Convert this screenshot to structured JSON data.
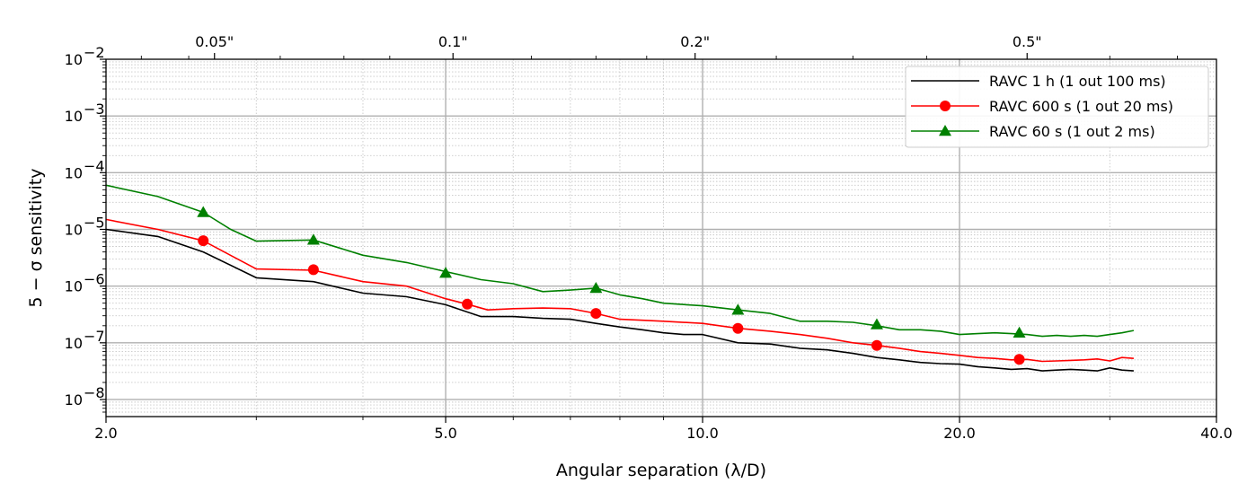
{
  "chart_data": {
    "type": "line",
    "xlabel": "Angular separation (λ/D)",
    "ylabel": "5 − σ sensitivity",
    "x_scale": "log",
    "y_scale": "log",
    "xlim": [
      2.0,
      40.0
    ],
    "ylim": [
      5e-09,
      0.01
    ],
    "grid": true,
    "legend_position": "top-right",
    "x_ticks": [
      {
        "value": 2.0,
        "label": "2.0"
      },
      {
        "value": 5.0,
        "label": "5.0"
      },
      {
        "value": 10.0,
        "label": "10.0"
      },
      {
        "value": 20.0,
        "label": "20.0"
      },
      {
        "value": 40.0,
        "label": "40.0"
      }
    ],
    "x_minor_ticks": [
      3,
      4,
      6,
      7,
      8,
      9,
      30
    ],
    "top_axis_ticks": [
      {
        "value": 2.68,
        "label": "0.05\""
      },
      {
        "value": 5.1,
        "label": "0.1\""
      },
      {
        "value": 9.8,
        "label": "0.2\""
      },
      {
        "value": 24.0,
        "label": "0.5\""
      }
    ],
    "y_ticks": [
      {
        "value": 1e-08,
        "mantissa": "10",
        "exp": "−8"
      },
      {
        "value": 1e-07,
        "mantissa": "10",
        "exp": "−7"
      },
      {
        "value": 1e-06,
        "mantissa": "10",
        "exp": "−6"
      },
      {
        "value": 1e-05,
        "mantissa": "10",
        "exp": "−5"
      },
      {
        "value": 0.0001,
        "mantissa": "10",
        "exp": "−4"
      },
      {
        "value": 0.001,
        "mantissa": "10",
        "exp": "−3"
      },
      {
        "value": 0.01,
        "mantissa": "10",
        "exp": "−2"
      }
    ],
    "series": [
      {
        "name": "RAVC 1 h (1 out 100 ms)",
        "color": "#000000",
        "marker": "none",
        "x": [
          2.0,
          2.3,
          2.6,
          3.0,
          3.5,
          4.0,
          4.5,
          5.0,
          5.5,
          6.0,
          6.5,
          7.0,
          7.5,
          8.0,
          8.5,
          9.0,
          9.5,
          10.0,
          11.0,
          12.0,
          13.0,
          14.0,
          15.0,
          16.0,
          17.0,
          18.0,
          19.0,
          20.0,
          21.0,
          22.0,
          23.0,
          24.0,
          25.0,
          26.0,
          27.0,
          28.0,
          29.0,
          30.0,
          31.0,
          32.0
        ],
        "y": [
          1e-05,
          7.5e-06,
          4e-06,
          1.4e-06,
          1.2e-06,
          7.5e-07,
          6.5e-07,
          4.7e-07,
          2.9e-07,
          2.9e-07,
          2.7e-07,
          2.6e-07,
          2.2e-07,
          1.9e-07,
          1.7e-07,
          1.5e-07,
          1.4e-07,
          1.4e-07,
          1e-07,
          9.5e-08,
          8e-08,
          7.5e-08,
          6.5e-08,
          5.5e-08,
          5e-08,
          4.5e-08,
          4.3e-08,
          4.2e-08,
          3.8e-08,
          3.6e-08,
          3.4e-08,
          3.5e-08,
          3.2e-08,
          3.3e-08,
          3.4e-08,
          3.3e-08,
          3.2e-08,
          3.6e-08,
          3.3e-08,
          3.2e-08
        ]
      },
      {
        "name": "RAVC 600 s (1 out 20 ms)",
        "color": "#ff0000",
        "marker": "circle",
        "x": [
          2.0,
          2.3,
          2.6,
          3.0,
          3.5,
          4.0,
          4.5,
          5.0,
          5.3,
          5.6,
          6.0,
          6.5,
          7.0,
          7.5,
          8.0,
          8.5,
          9.0,
          10.0,
          11.0,
          12.0,
          13.0,
          14.0,
          15.0,
          16.0,
          17.0,
          18.0,
          19.0,
          20.0,
          21.0,
          22.0,
          23.0,
          24.0,
          25.0,
          26.0,
          27.0,
          28.0,
          29.0,
          30.0,
          31.0,
          32.0
        ],
        "y": [
          1.5e-05,
          1e-05,
          6.3e-06,
          2e-06,
          1.9e-06,
          1.2e-06,
          1e-06,
          6e-07,
          4.8e-07,
          3.8e-07,
          4e-07,
          4.1e-07,
          4e-07,
          3.3e-07,
          2.6e-07,
          2.5e-07,
          2.4e-07,
          2.2e-07,
          1.8e-07,
          1.6e-07,
          1.4e-07,
          1.2e-07,
          1e-07,
          9e-08,
          8e-08,
          7e-08,
          6.5e-08,
          6e-08,
          5.5e-08,
          5.3e-08,
          5e-08,
          5.1e-08,
          4.7e-08,
          4.8e-08,
          4.9e-08,
          5e-08,
          5.2e-08,
          4.8e-08,
          5.5e-08,
          5.3e-08
        ],
        "marker_x": [
          2.6,
          3.5,
          5.3,
          7.5,
          11.0,
          16.0,
          23.5
        ],
        "marker_y": [
          6.3e-06,
          1.95e-06,
          4.8e-07,
          3.3e-07,
          1.8e-07,
          9e-08,
          5.1e-08
        ]
      },
      {
        "name": "RAVC 60 s (1 out 2 ms)",
        "color": "#008000",
        "marker": "triangle",
        "x": [
          2.0,
          2.3,
          2.6,
          2.8,
          3.0,
          3.5,
          4.0,
          4.5,
          5.0,
          5.5,
          6.0,
          6.5,
          7.0,
          7.5,
          8.0,
          8.5,
          9.0,
          10.0,
          11.0,
          12.0,
          13.0,
          14.0,
          15.0,
          16.0,
          17.0,
          18.0,
          19.0,
          20.0,
          21.0,
          22.0,
          23.0,
          24.0,
          25.0,
          26.0,
          27.0,
          28.0,
          29.0,
          30.0,
          31.0,
          32.0
        ],
        "y": [
          6e-05,
          3.8e-05,
          2e-05,
          1e-05,
          6.2e-06,
          6.5e-06,
          3.5e-06,
          2.6e-06,
          1.8e-06,
          1.3e-06,
          1.1e-06,
          8e-07,
          8.5e-07,
          9.2e-07,
          7e-07,
          6e-07,
          5e-07,
          4.5e-07,
          3.8e-07,
          3.3e-07,
          2.4e-07,
          2.4e-07,
          2.3e-07,
          2e-07,
          1.7e-07,
          1.7e-07,
          1.6e-07,
          1.4e-07,
          1.45e-07,
          1.5e-07,
          1.45e-07,
          1.4e-07,
          1.3e-07,
          1.35e-07,
          1.3e-07,
          1.35e-07,
          1.3e-07,
          1.4e-07,
          1.5e-07,
          1.65e-07
        ],
        "marker_x": [
          2.6,
          3.5,
          5.0,
          7.5,
          11.0,
          16.0,
          23.5
        ],
        "marker_y": [
          2e-05,
          6.5e-06,
          1.7e-06,
          9.2e-07,
          3.8e-07,
          2.1e-07,
          1.5e-07
        ]
      }
    ]
  }
}
